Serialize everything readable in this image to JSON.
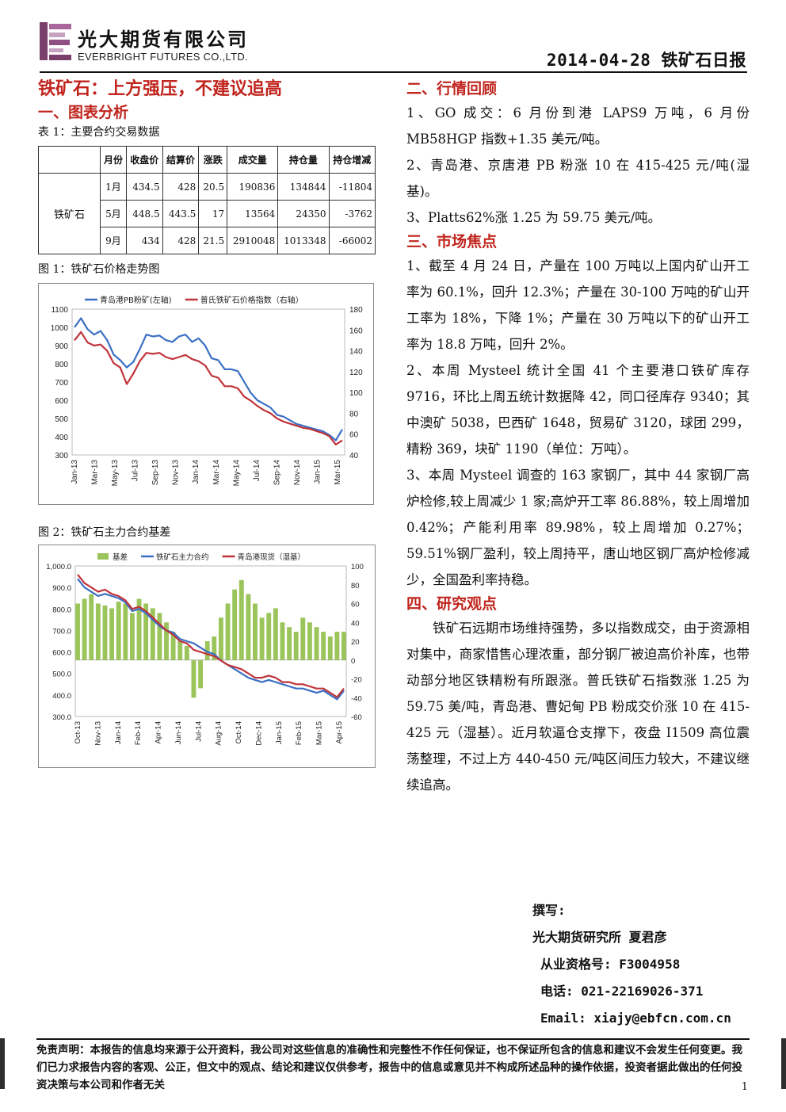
{
  "header": {
    "company_cn": "光大期货有限公司",
    "company_en": "EVERBRIGHT FUTURES CO.,LTD.",
    "date_title": "2014-04-28 铁矿石日报"
  },
  "left": {
    "main_title": "铁矿石：上方强压，不建议追高",
    "section1_title": "一、图表分析",
    "table_caption": "表 1：主要合约交易数据",
    "table": {
      "headers": [
        "月份",
        "收盘价",
        "结算价",
        "涨跌",
        "成交量",
        "持仓量",
        "持仓增减"
      ],
      "product": "铁矿石",
      "rows": [
        [
          "1月",
          "434.5",
          "428",
          "20.5",
          "190836",
          "134844",
          "-11804"
        ],
        [
          "5月",
          "448.5",
          "443.5",
          "17",
          "13564",
          "24350",
          "-3762"
        ],
        [
          "9月",
          "434",
          "428",
          "21.5",
          "2910048",
          "1013348",
          "-66002"
        ]
      ]
    },
    "fig1_caption": "图 1：铁矿石价格走势图",
    "fig2_caption": "图 2：铁矿石主力合约基差"
  },
  "chart_data": [
    {
      "type": "line",
      "legend_position": "top",
      "x_ticks": [
        "Jan-13",
        "Mar-13",
        "May-13",
        "Jul-13",
        "Sep-13",
        "Nov-13",
        "Jan-14",
        "Mar-14",
        "May-14",
        "Jul-14",
        "Sep-14",
        "Nov-14",
        "Jan-15",
        "Mar-15"
      ],
      "y_left_ticks": [
        "1100",
        "1000",
        "900",
        "800",
        "700",
        "600",
        "500",
        "400",
        "300"
      ],
      "y_right_ticks": [
        "180",
        "160",
        "140",
        "120",
        "100",
        "80",
        "60",
        "40"
      ],
      "ylim_left": [
        300,
        1100
      ],
      "ylim_right": [
        40,
        180
      ],
      "series": [
        {
          "name": "青岛港PB粉矿(左轴)",
          "axis": "left",
          "color": "#3a6fc4",
          "values": [
            1000,
            1050,
            990,
            960,
            980,
            930,
            850,
            820,
            780,
            810,
            880,
            960,
            950,
            955,
            930,
            920,
            950,
            960,
            920,
            940,
            900,
            830,
            820,
            770,
            770,
            760,
            700,
            640,
            600,
            580,
            560,
            520,
            510,
            490,
            470,
            460,
            450,
            440,
            430,
            410,
            380,
            440
          ]
        },
        {
          "name": "普氏铁矿石价格指数（右轴）",
          "axis": "right",
          "color": "#c0343a",
          "values": [
            150,
            158,
            148,
            145,
            146,
            140,
            128,
            124,
            108,
            118,
            130,
            138,
            137,
            138,
            134,
            132,
            134,
            136,
            132,
            130,
            126,
            116,
            114,
            106,
            106,
            104,
            96,
            92,
            87,
            83,
            80,
            75,
            72,
            70,
            68,
            66,
            65,
            63,
            61,
            58,
            50,
            54
          ]
        }
      ]
    },
    {
      "type": "bar",
      "legend_position": "top",
      "x_ticks": [
        "Oct-13",
        "Nov-13",
        "Jan-14",
        "Feb-14",
        "Apr-14",
        "Jun-14",
        "Jul-14",
        "Aug-14",
        "Oct-14",
        "Dec-14",
        "Jan-15",
        "Feb-15",
        "Mar-15",
        "Apr-15"
      ],
      "y_left_ticks": [
        "1,000.0",
        "900.0",
        "800.0",
        "700.0",
        "600.0",
        "500.0",
        "400.0",
        "300.0"
      ],
      "y_right_ticks": [
        "100",
        "80",
        "60",
        "40",
        "20",
        "0",
        "-20",
        "-40",
        "-60"
      ],
      "ylim_left": [
        300,
        1000
      ],
      "ylim_right": [
        -60,
        100
      ],
      "series": [
        {
          "name": "基差",
          "axis": "right",
          "kind": "bar",
          "color": "#9bc45a",
          "values": [
            60,
            65,
            70,
            60,
            58,
            55,
            62,
            60,
            50,
            65,
            60,
            55,
            50,
            40,
            30,
            20,
            15,
            -40,
            -30,
            20,
            25,
            45,
            60,
            75,
            85,
            70,
            60,
            45,
            50,
            55,
            40,
            35,
            30,
            45,
            40,
            35,
            30,
            25,
            30,
            30
          ]
        },
        {
          "name": "铁矿石主力合约",
          "axis": "left",
          "kind": "line",
          "color": "#3a6fc4",
          "values": [
            940,
            900,
            880,
            860,
            870,
            860,
            850,
            830,
            790,
            800,
            780,
            750,
            720,
            700,
            690,
            660,
            650,
            640,
            620,
            600,
            590,
            560,
            540,
            520,
            500,
            480,
            470,
            460,
            470,
            460,
            450,
            440,
            430,
            430,
            420,
            410,
            420,
            400,
            380,
            420
          ]
        },
        {
          "name": "青岛港现货（湿基）",
          "axis": "left",
          "kind": "line",
          "color": "#c0343a",
          "values": [
            960,
            920,
            900,
            880,
            890,
            870,
            860,
            840,
            800,
            810,
            790,
            760,
            730,
            700,
            680,
            650,
            640,
            610,
            600,
            590,
            580,
            560,
            540,
            530,
            520,
            500,
            480,
            480,
            490,
            480,
            460,
            460,
            450,
            450,
            440,
            430,
            430,
            410,
            390,
            430
          ]
        }
      ]
    }
  ],
  "right": {
    "section2_title": "二、行情回顾",
    "market_review": [
      "1、GO 成交：6 月份到港 LAPS9 万吨，6 月份 MB58HGP 指数+1.35 美元/吨。",
      "2、青岛港、京唐港 PB 粉涨 10 在 415-425 元/吨(湿基)。",
      "3、Platts62%涨 1.25 为 59.75 美元/吨。"
    ],
    "section3_title": "三、市场焦点",
    "market_focus": [
      "1、截至 4 月 24 日，产量在 100 万吨以上国内矿山开工率为 60.1%，回升 12.3%；产量在 30-100 万吨的矿山开工率为 18%，下降 1%；产量在 30 万吨以下的矿山开工率为 18.8 万吨，回升 2%。",
      "2、本周 Mysteel 统计全国 41 个主要港口铁矿库存 9716，环比上周五统计数据降 42，同口径库存 9340；其中澳矿 5038，巴西矿 1648，贸易矿 3120，球团 299，精粉 369，块矿 1190（单位：万吨）。",
      "3、本周 Mysteel 调查的 163 家钢厂，其中 44 家钢厂高炉检修,较上周减少 1 家;高炉开工率 86.88%，较上周增加 0.42%；产能利用率 89.98%，较上周增加 0.27%；59.51%钢厂盈利，较上周持平，唐山地区钢厂高炉检修减少，全国盈利率持稳。"
    ],
    "section4_title": "四、研究观点",
    "research_view": "铁矿石远期市场维持强势，多以指数成交，由于资源相对集中，商家惜售心理浓重，部分钢厂被迫高价补库，也带动部分地区铁精粉有所跟涨。普氏铁矿石指数涨 1.25 为 59.75 美/吨，青岛港、曹妃甸 PB 粉成交价涨 10 在 415-425 元（湿基）。近月软逼仓支撑下，夜盘 I1509 高位震荡整理，不过上方 440-450 元/吨区间压力较大，不建议继续追高。"
  },
  "author": {
    "label": "撰写:",
    "org_name": "光大期货研究所 夏君彦",
    "license": "从业资格号: F3004958",
    "phone": "电话: 021-22169026-371",
    "email": "Email: xiajy@ebfcn.com.cn"
  },
  "footer": {
    "disclaimer": "免责声明：本报告的信息均来源于公开资料，我公司对这些信息的准确性和完整性不作任何保证，也不保证所包含的信息和建议不会发生任何变更。我们已力求报告内容的客观、公正，但文中的观点、结论和建议仅供参考，报告中的信息或意见并不构成所述品种的操作依据，投资者据此做出的任何投资决策与本公司和作者无关",
    "page_number": "1"
  }
}
